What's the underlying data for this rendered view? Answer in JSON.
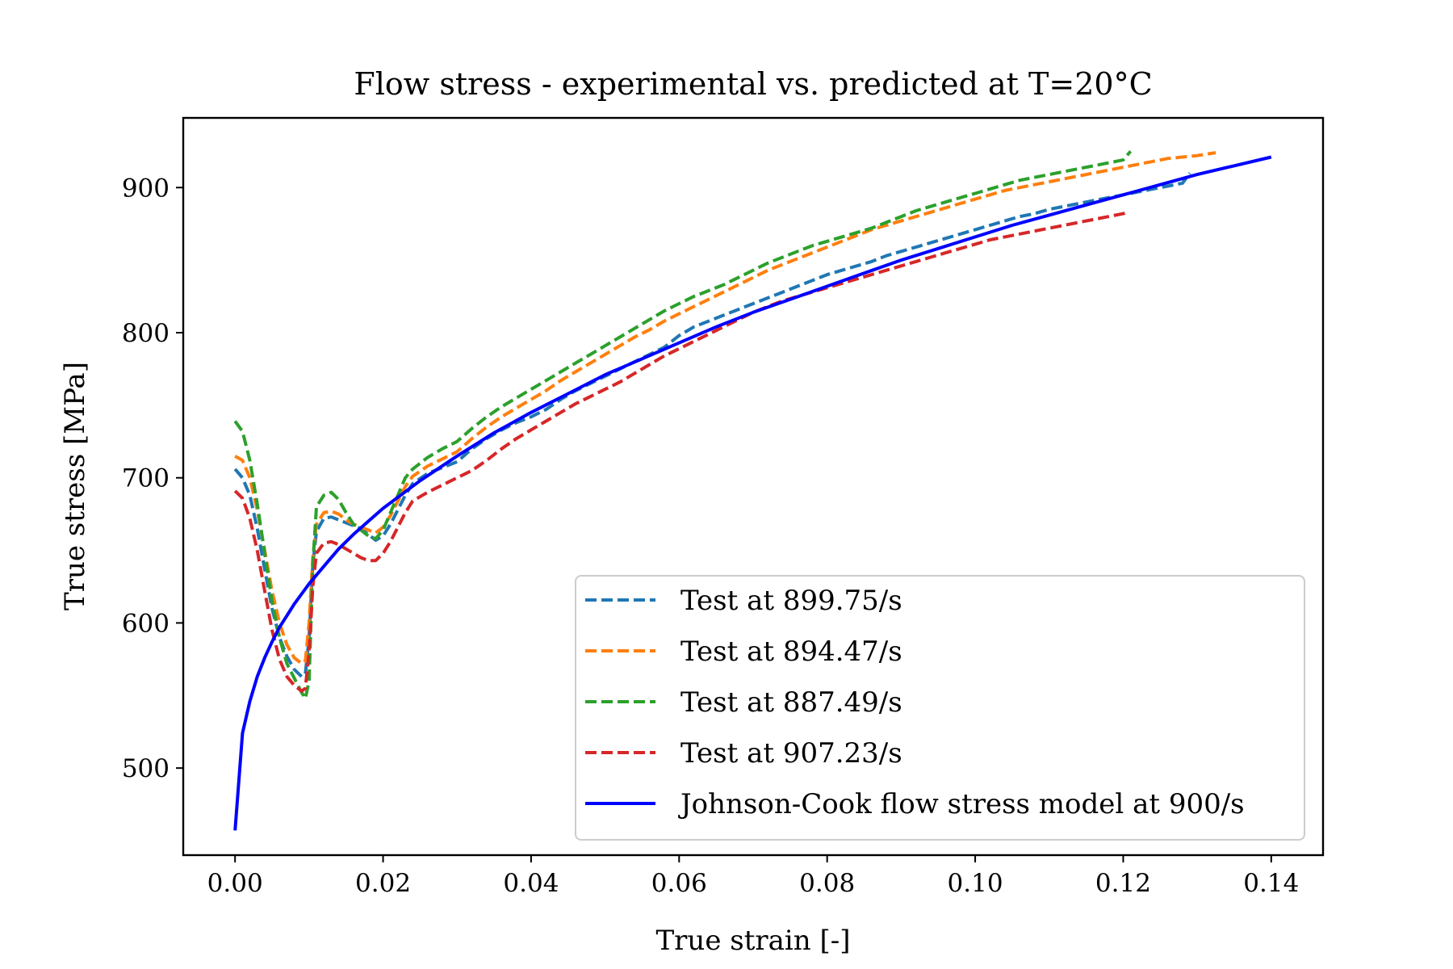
{
  "chart_data": {
    "type": "line",
    "title": "Flow stress - experimental vs. predicted at T=20°C",
    "xlabel": "True strain [-]",
    "ylabel": "True stress [MPa]",
    "xlim": [
      -0.007,
      0.147
    ],
    "ylim": [
      440,
      948
    ],
    "xticks": [
      0.0,
      0.02,
      0.04,
      0.06,
      0.08,
      0.1,
      0.12,
      0.14
    ],
    "xtick_labels": [
      "0.00",
      "0.02",
      "0.04",
      "0.06",
      "0.08",
      "0.10",
      "0.12",
      "0.14"
    ],
    "yticks": [
      500,
      600,
      700,
      800,
      900
    ],
    "ytick_labels": [
      "500",
      "600",
      "700",
      "800",
      "900"
    ],
    "grid": false,
    "legend_position": "lower-right",
    "series": [
      {
        "name": "Test at 899.75/s",
        "color": "#1f77b4",
        "style": "dashed",
        "x": [
          0.0,
          0.001,
          0.002,
          0.003,
          0.004,
          0.005,
          0.006,
          0.007,
          0.008,
          0.009,
          0.0095,
          0.01,
          0.0105,
          0.011,
          0.012,
          0.013,
          0.014,
          0.015,
          0.016,
          0.017,
          0.018,
          0.019,
          0.02,
          0.021,
          0.022,
          0.023,
          0.024,
          0.026,
          0.028,
          0.03,
          0.032,
          0.034,
          0.036,
          0.038,
          0.04,
          0.042,
          0.044,
          0.046,
          0.048,
          0.05,
          0.052,
          0.054,
          0.056,
          0.058,
          0.06,
          0.062,
          0.064,
          0.066,
          0.068,
          0.07,
          0.072,
          0.074,
          0.076,
          0.078,
          0.08,
          0.082,
          0.084,
          0.086,
          0.088,
          0.09,
          0.092,
          0.094,
          0.096,
          0.098,
          0.1,
          0.102,
          0.104,
          0.106,
          0.108,
          0.11,
          0.112,
          0.114,
          0.116,
          0.118,
          0.12,
          0.122,
          0.124,
          0.126,
          0.128,
          0.129
        ],
        "y": [
          706,
          700,
          688,
          665,
          637,
          610,
          590,
          577,
          568,
          563,
          565,
          590,
          640,
          663,
          672,
          673,
          671,
          669,
          667,
          665,
          661,
          657,
          660,
          668,
          678,
          688,
          696,
          703,
          707,
          711,
          720,
          727,
          733,
          738,
          742,
          747,
          754,
          760,
          765,
          770,
          775,
          780,
          785,
          790,
          798,
          804,
          808,
          812,
          816,
          820,
          824,
          828,
          832,
          836,
          840,
          843,
          846,
          849,
          853,
          856,
          859,
          862,
          865,
          868,
          871,
          874,
          877,
          880,
          882,
          885,
          887,
          889,
          891,
          893,
          895,
          897,
          899,
          901,
          903,
          910
        ]
      },
      {
        "name": "Test at 894.47/s",
        "color": "#ff7f0e",
        "style": "dashed",
        "x": [
          0.0,
          0.001,
          0.002,
          0.003,
          0.004,
          0.005,
          0.006,
          0.007,
          0.008,
          0.009,
          0.0095,
          0.01,
          0.0105,
          0.011,
          0.012,
          0.013,
          0.014,
          0.015,
          0.016,
          0.017,
          0.018,
          0.019,
          0.02,
          0.021,
          0.022,
          0.023,
          0.024,
          0.026,
          0.028,
          0.03,
          0.032,
          0.034,
          0.036,
          0.038,
          0.04,
          0.042,
          0.044,
          0.046,
          0.048,
          0.05,
          0.052,
          0.054,
          0.056,
          0.058,
          0.06,
          0.062,
          0.064,
          0.066,
          0.068,
          0.07,
          0.072,
          0.074,
          0.076,
          0.078,
          0.08,
          0.082,
          0.084,
          0.086,
          0.088,
          0.09,
          0.092,
          0.094,
          0.096,
          0.098,
          0.1,
          0.102,
          0.104,
          0.106,
          0.108,
          0.11,
          0.112,
          0.114,
          0.116,
          0.118,
          0.12,
          0.122,
          0.124,
          0.126,
          0.128,
          0.13,
          0.1325
        ],
        "y": [
          715,
          712,
          700,
          678,
          650,
          622,
          600,
          585,
          576,
          572,
          574,
          600,
          645,
          668,
          676,
          677,
          675,
          671,
          668,
          666,
          664,
          662,
          666,
          674,
          684,
          694,
          701,
          708,
          713,
          718,
          727,
          735,
          742,
          748,
          754,
          760,
          767,
          773,
          779,
          785,
          791,
          797,
          802,
          808,
          813,
          818,
          823,
          828,
          833,
          838,
          843,
          847,
          851,
          855,
          859,
          863,
          867,
          871,
          874,
          877,
          880,
          883,
          886,
          889,
          892,
          895,
          898,
          900,
          902,
          904,
          906,
          908,
          910,
          912,
          914,
          916,
          918,
          920,
          921,
          922,
          924
        ]
      },
      {
        "name": "Test at 887.49/s",
        "color": "#2ca02c",
        "style": "dashed",
        "x": [
          0.0,
          0.001,
          0.002,
          0.003,
          0.004,
          0.005,
          0.006,
          0.007,
          0.008,
          0.009,
          0.0095,
          0.01,
          0.0105,
          0.011,
          0.012,
          0.013,
          0.014,
          0.015,
          0.016,
          0.017,
          0.018,
          0.019,
          0.02,
          0.021,
          0.022,
          0.023,
          0.024,
          0.026,
          0.028,
          0.03,
          0.032,
          0.034,
          0.036,
          0.038,
          0.04,
          0.042,
          0.044,
          0.046,
          0.048,
          0.05,
          0.052,
          0.054,
          0.056,
          0.058,
          0.06,
          0.062,
          0.064,
          0.066,
          0.068,
          0.07,
          0.072,
          0.074,
          0.076,
          0.078,
          0.08,
          0.082,
          0.084,
          0.086,
          0.088,
          0.09,
          0.092,
          0.094,
          0.096,
          0.098,
          0.1,
          0.102,
          0.104,
          0.106,
          0.108,
          0.11,
          0.112,
          0.114,
          0.116,
          0.118,
          0.12,
          0.121
        ],
        "y": [
          739,
          732,
          712,
          682,
          648,
          615,
          590,
          572,
          562,
          552,
          548,
          560,
          640,
          680,
          688,
          690,
          685,
          676,
          668,
          664,
          660,
          658,
          664,
          676,
          688,
          700,
          706,
          714,
          720,
          725,
          734,
          742,
          749,
          755,
          761,
          767,
          773,
          779,
          785,
          791,
          797,
          803,
          809,
          815,
          820,
          825,
          829,
          833,
          838,
          843,
          848,
          852,
          856,
          860,
          863,
          866,
          869,
          872,
          876,
          880,
          884,
          887,
          890,
          893,
          896,
          899,
          902,
          905,
          907,
          909,
          911,
          913,
          915,
          917,
          919,
          925
        ]
      },
      {
        "name": "Test at 907.23/s",
        "color": "#d62728",
        "style": "dashed",
        "x": [
          0.0,
          0.001,
          0.002,
          0.003,
          0.004,
          0.005,
          0.006,
          0.007,
          0.008,
          0.009,
          0.0095,
          0.01,
          0.0105,
          0.011,
          0.012,
          0.013,
          0.014,
          0.015,
          0.016,
          0.017,
          0.018,
          0.019,
          0.02,
          0.021,
          0.022,
          0.023,
          0.024,
          0.026,
          0.028,
          0.03,
          0.032,
          0.034,
          0.036,
          0.038,
          0.04,
          0.042,
          0.044,
          0.046,
          0.048,
          0.05,
          0.052,
          0.054,
          0.056,
          0.058,
          0.06,
          0.062,
          0.064,
          0.066,
          0.068,
          0.07,
          0.072,
          0.074,
          0.076,
          0.078,
          0.08,
          0.082,
          0.084,
          0.086,
          0.088,
          0.09,
          0.092,
          0.094,
          0.096,
          0.098,
          0.1,
          0.102,
          0.104,
          0.106,
          0.108,
          0.11,
          0.112,
          0.114,
          0.116,
          0.118,
          0.12,
          0.1205
        ],
        "y": [
          691,
          686,
          672,
          650,
          622,
          595,
          575,
          563,
          557,
          553,
          555,
          580,
          625,
          648,
          655,
          656,
          654,
          651,
          648,
          645,
          643,
          643,
          648,
          656,
          666,
          676,
          684,
          690,
          695,
          700,
          705,
          712,
          720,
          727,
          733,
          739,
          745,
          751,
          756,
          761,
          766,
          772,
          778,
          784,
          789,
          794,
          799,
          804,
          809,
          814,
          818,
          822,
          825,
          828,
          831,
          834,
          837,
          840,
          843,
          846,
          849,
          852,
          855,
          858,
          861,
          864,
          866,
          868,
          870,
          872,
          874,
          876,
          878,
          880,
          882,
          883
        ]
      },
      {
        "name": "Johnson-Cook flow stress model at 900/s",
        "color": "#0000ff",
        "style": "solid",
        "x": [
          0.0,
          0.001,
          0.002,
          0.003,
          0.004,
          0.005,
          0.006,
          0.007,
          0.008,
          0.009,
          0.01,
          0.012,
          0.014,
          0.016,
          0.018,
          0.02,
          0.025,
          0.03,
          0.035,
          0.04,
          0.045,
          0.05,
          0.055,
          0.06,
          0.065,
          0.07,
          0.075,
          0.08,
          0.085,
          0.09,
          0.095,
          0.1,
          0.105,
          0.11,
          0.115,
          0.12,
          0.125,
          0.13,
          0.135,
          0.14
        ],
        "y": [
          457,
          524,
          546,
          563,
          576,
          587,
          597,
          605,
          613,
          620,
          627,
          639,
          651,
          661,
          670,
          679,
          698,
          715,
          731,
          745,
          758,
          771,
          782,
          793,
          804,
          814,
          823,
          832,
          841,
          850,
          858,
          866,
          874,
          881,
          888,
          895,
          902,
          909,
          915,
          921
        ]
      }
    ]
  }
}
